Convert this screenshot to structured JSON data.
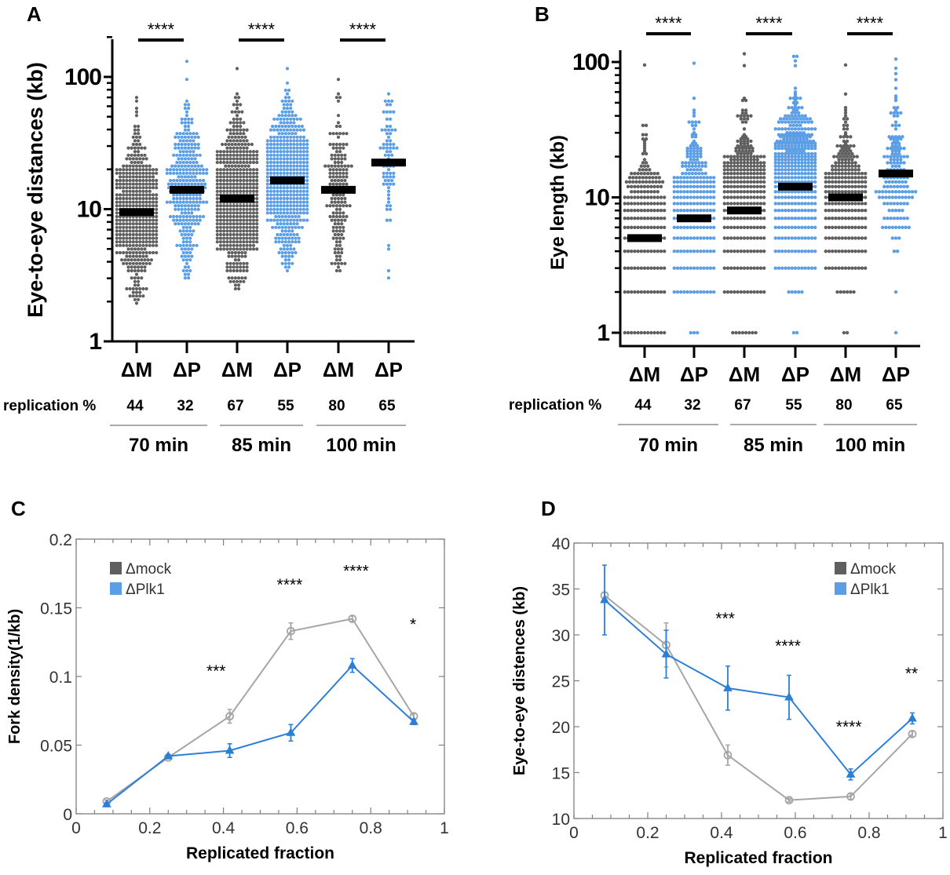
{
  "colors": {
    "mock": "#5f5f5f",
    "plk1": "#5b9ee6",
    "mock_line": "#a6a6a6",
    "plk1_line": "#2b7fd6",
    "median": "#000000",
    "axis": "#000000",
    "box": "#7f7f7f"
  },
  "chart_data": [
    {
      "panel": "A",
      "type": "scatter",
      "subtype": "dot-plot-with-median",
      "ylabel": "Eye-to-eye distances (kb)",
      "yscale": "log",
      "ylim": [
        1,
        200
      ],
      "yticks": [
        1,
        10,
        100
      ],
      "ytick_labels": [
        "1",
        "10",
        "100"
      ],
      "categories": [
        "ΔM",
        "ΔP",
        "ΔM",
        "ΔP",
        "ΔM",
        "ΔP"
      ],
      "category_series": [
        "mock",
        "plk1",
        "mock",
        "plk1",
        "mock",
        "plk1"
      ],
      "replication_label": "replication %",
      "replication_percent": [
        "44",
        "32",
        "67",
        "55",
        "80",
        "65"
      ],
      "groups": [
        {
          "label": "70 min"
        },
        {
          "label": "85 min"
        },
        {
          "label": "100 min"
        }
      ],
      "medians": [
        9.5,
        14,
        12,
        16.5,
        14,
        22.5
      ],
      "ranges": [
        [
          2,
          72
        ],
        [
          3,
          135
        ],
        [
          2.5,
          115
        ],
        [
          3.5,
          115
        ],
        [
          3.5,
          95
        ],
        [
          3,
          75
        ]
      ],
      "point_counts": [
        520,
        300,
        700,
        560,
        170,
        75
      ],
      "significance": [
        "****",
        "****",
        "****"
      ]
    },
    {
      "panel": "B",
      "type": "scatter",
      "subtype": "dot-plot-with-median",
      "ylabel": "Eye length (kb)",
      "yscale": "log",
      "ylim": [
        0.9,
        120
      ],
      "yticks": [
        1,
        10,
        100
      ],
      "ytick_labels": [
        "1",
        "10",
        "100"
      ],
      "categories": [
        "ΔM",
        "ΔP",
        "ΔM",
        "ΔP",
        "ΔM",
        "ΔP"
      ],
      "category_series": [
        "mock",
        "plk1",
        "mock",
        "plk1",
        "mock",
        "plk1"
      ],
      "replication_label": "replication %",
      "replication_percent": [
        "44",
        "32",
        "67",
        "55",
        "80",
        "65"
      ],
      "groups": [
        {
          "label": "70 min"
        },
        {
          "label": "85 min"
        },
        {
          "label": "100 min"
        }
      ],
      "medians": [
        5,
        7,
        8,
        12,
        10,
        15
      ],
      "ranges": [
        [
          1,
          95
        ],
        [
          1,
          98
        ],
        [
          1,
          115
        ],
        [
          1,
          110
        ],
        [
          1,
          95
        ],
        [
          1,
          105
        ]
      ],
      "point_counts": [
        600,
        520,
        900,
        950,
        330,
        170
      ],
      "significance": [
        "****",
        "****",
        "****"
      ]
    },
    {
      "panel": "C",
      "type": "line",
      "xlabel": "Replicated fraction",
      "ylabel": "Fork density(1/kb)",
      "xlim": [
        0,
        1
      ],
      "ylim": [
        0,
        0.2
      ],
      "xticks": [
        0,
        0.2,
        0.4,
        0.6,
        0.8,
        1
      ],
      "xtick_labels": [
        "0",
        "0.2",
        "0.4",
        "0.6",
        "0.8",
        "1"
      ],
      "yticks": [
        0,
        0.05,
        0.1,
        0.15,
        0.2
      ],
      "ytick_labels": [
        "0",
        "0.05",
        "0.1",
        "0.15",
        "0.2"
      ],
      "legend_position": "top-left",
      "x": [
        0.083,
        0.25,
        0.417,
        0.583,
        0.75,
        0.917
      ],
      "series": [
        {
          "name": "Δmock",
          "key": "mock",
          "marker": "circle",
          "values": [
            0.009,
            0.041,
            0.071,
            0.133,
            0.142,
            0.071
          ],
          "errors": [
            0.001,
            0.001,
            0.005,
            0.006,
            0.002,
            0.002
          ]
        },
        {
          "name": "ΔPlk1",
          "key": "plk1",
          "marker": "triangle",
          "values": [
            0.007,
            0.042,
            0.046,
            0.059,
            0.108,
            0.067
          ],
          "errors": [
            0.001,
            0.001,
            0.005,
            0.006,
            0.005,
            0.002
          ]
        }
      ],
      "annotations": [
        {
          "x": 0.38,
          "y": 0.1,
          "text": "***"
        },
        {
          "x": 0.58,
          "y": 0.163,
          "text": "****"
        },
        {
          "x": 0.76,
          "y": 0.173,
          "text": "****"
        },
        {
          "x": 0.915,
          "y": 0.134,
          "text": "*"
        }
      ]
    },
    {
      "panel": "D",
      "type": "line",
      "xlabel": "Replicated fraction",
      "ylabel": "Eye-to-eye distences (kb)",
      "xlim": [
        0,
        1
      ],
      "ylim": [
        10,
        40
      ],
      "xticks": [
        0,
        0.2,
        0.4,
        0.6,
        0.8,
        1
      ],
      "xtick_labels": [
        "0",
        "0.2",
        "0.4",
        "0.6",
        "0.8",
        "1"
      ],
      "yticks": [
        10,
        15,
        20,
        25,
        30,
        35,
        40
      ],
      "ytick_labels": [
        "10",
        "15",
        "20",
        "25",
        "30",
        "35",
        "40"
      ],
      "legend_position": "top-right",
      "x": [
        0.083,
        0.25,
        0.417,
        0.583,
        0.75,
        0.917
      ],
      "series": [
        {
          "name": "Δmock",
          "key": "mock",
          "marker": "circle",
          "values": [
            34.3,
            28.9,
            16.9,
            12.0,
            12.4,
            19.2
          ],
          "errors": [
            0.3,
            2.4,
            1.1,
            0.2,
            0.3,
            0.3
          ]
        },
        {
          "name": "ΔPlk1",
          "key": "plk1",
          "marker": "triangle",
          "values": [
            33.8,
            27.9,
            24.2,
            23.2,
            14.8,
            20.9
          ],
          "errors": [
            3.8,
            2.6,
            2.4,
            2.4,
            0.6,
            0.6
          ]
        }
      ],
      "annotations": [
        {
          "x": 0.41,
          "y": 31.2,
          "text": "***"
        },
        {
          "x": 0.58,
          "y": 28.2,
          "text": "****"
        },
        {
          "x": 0.745,
          "y": 19.4,
          "text": "****"
        },
        {
          "x": 0.915,
          "y": 25.2,
          "text": "**"
        }
      ]
    }
  ]
}
